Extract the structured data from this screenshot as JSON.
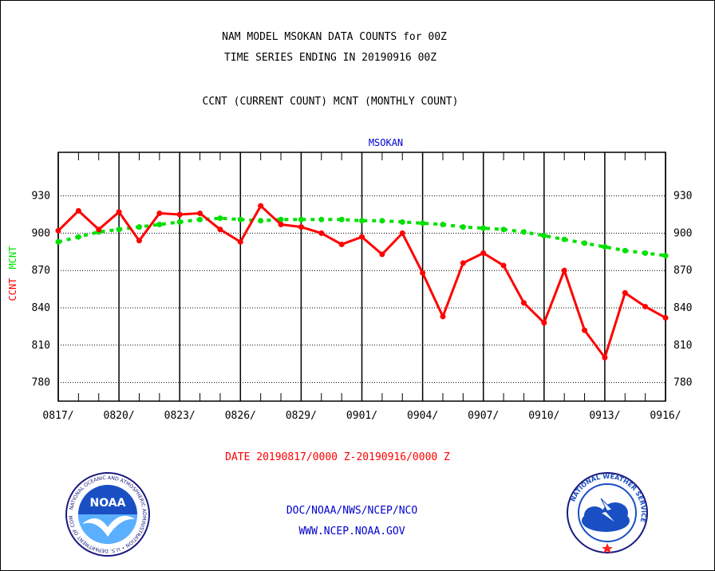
{
  "header": {
    "line1": "NAM MODEL MSOKAN DATA COUNTS for 00Z",
    "line2": "TIME SERIES ENDING IN 20190916 00Z",
    "line3": "CCNT (CURRENT COUNT) MCNT (MONTHLY COUNT)"
  },
  "footer": {
    "date_range": "DATE 20190817/0000 Z-20190916/0000 Z",
    "agency": "DOC/NOAA/NWS/NCEP/NCO",
    "url": "WWW.NCEP.NOAA.GOV"
  },
  "logos": {
    "noaa_text": "NOAA",
    "noaa_ring": "NATIONAL OCEANIC AND ATMOSPHERIC ADMINISTRATION • U.S. DEPARTMENT OF COMMERCE •",
    "nws_ring": "NATIONAL WEATHER SERVICE"
  },
  "chart_data": {
    "type": "line",
    "title": "MSOKAN",
    "ylabel_ccnt": "CCNT",
    "ylabel_mcnt": "MCNT",
    "ylim": [
      765,
      965
    ],
    "yticks": [
      780,
      810,
      840,
      870,
      900,
      930
    ],
    "xlim": [
      0,
      30
    ],
    "xtick_positions": [
      0,
      3,
      6,
      9,
      12,
      15,
      18,
      21,
      24,
      27,
      30
    ],
    "xtick_labels": [
      "0817/",
      "0820/",
      "0823/",
      "0826/",
      "0829/",
      "0901/",
      "0904/",
      "0907/",
      "0910/",
      "0913/",
      "0916/"
    ],
    "grid": true,
    "colors": {
      "ccnt": "#ff0000",
      "mcnt": "#00e000",
      "title": "#0000cc",
      "footer_red": "#ff0000",
      "footer_blue": "#0000cc"
    },
    "series": [
      {
        "name": "CCNT",
        "values": [
          902,
          918,
          903,
          917,
          894,
          916,
          915,
          916,
          903,
          893,
          922,
          907,
          905,
          900,
          891,
          897,
          883,
          900,
          868,
          833,
          876,
          884,
          874,
          844,
          828,
          870,
          822,
          800,
          852,
          841,
          832
        ]
      },
      {
        "name": "MCNT",
        "values": [
          893,
          897,
          901,
          903,
          905,
          907,
          909,
          911,
          912,
          911,
          910,
          911,
          911,
          911,
          911,
          910,
          910,
          909,
          908,
          907,
          905,
          904,
          903,
          901,
          898,
          895,
          892,
          889,
          886,
          884,
          882
        ]
      }
    ]
  }
}
